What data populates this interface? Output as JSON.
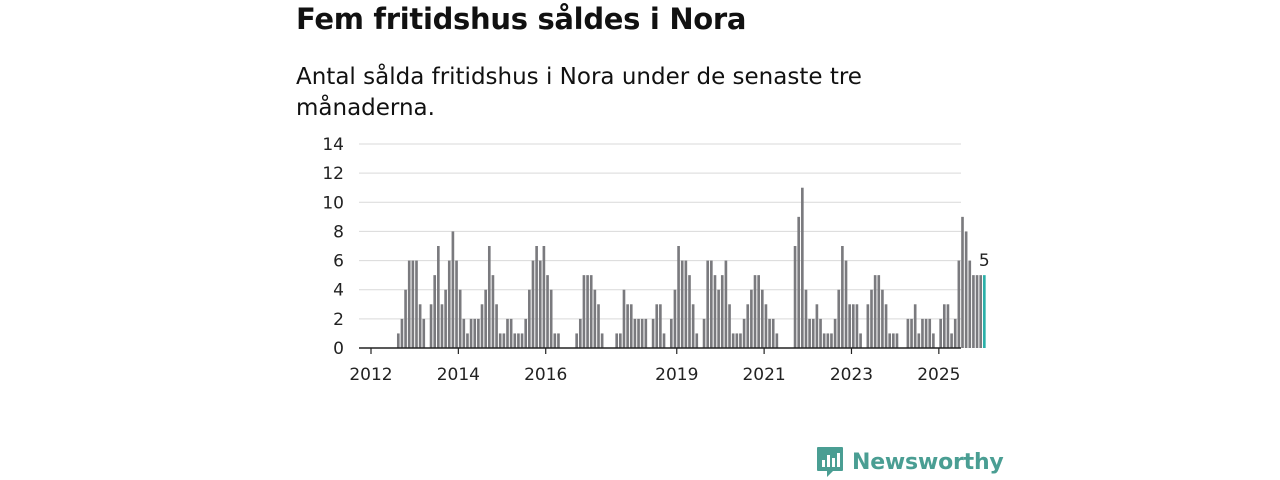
{
  "title": "Fem fritidshus såldes i Nora",
  "subtitle": "Antal sålda fritidshus i Nora under de senaste tre månaderna.",
  "brand": {
    "name": "Newsworthy",
    "color": "#4a9e93",
    "icon": "newsworthy-logo-icon"
  },
  "chart_data": {
    "type": "bar",
    "title": "Fem fritidshus såldes i Nora",
    "subtitle": "Antal sålda fritidshus i Nora under de senaste tre månaderna.",
    "xlabel": "",
    "ylabel": "",
    "ylim": [
      0,
      14
    ],
    "yticks": [
      "0",
      "2",
      "4",
      "6",
      "8",
      "10",
      "12",
      "14"
    ],
    "xticks": [
      "2012",
      "2014",
      "2016",
      "2019",
      "2021",
      "2023",
      "2025"
    ],
    "grid": true,
    "bar_color": "#7a7a7e",
    "highlight_color": "#2ab0a8",
    "highlight_label": "5",
    "start": "2011-10",
    "values": [
      null,
      null,
      null,
      null,
      null,
      null,
      null,
      null,
      null,
      null,
      1,
      2,
      4,
      6,
      6,
      6,
      3,
      2,
      null,
      3,
      5,
      7,
      3,
      4,
      6,
      8,
      6,
      4,
      2,
      1,
      2,
      2,
      2,
      3,
      4,
      7,
      5,
      3,
      1,
      1,
      2,
      2,
      1,
      1,
      1,
      2,
      4,
      6,
      7,
      6,
      7,
      5,
      4,
      1,
      1,
      null,
      null,
      null,
      null,
      1,
      2,
      5,
      5,
      5,
      4,
      3,
      1,
      null,
      null,
      null,
      1,
      1,
      4,
      3,
      3,
      2,
      2,
      2,
      2,
      null,
      2,
      3,
      3,
      1,
      null,
      2,
      4,
      7,
      6,
      6,
      5,
      3,
      1,
      null,
      2,
      6,
      6,
      5,
      4,
      5,
      6,
      3,
      1,
      1,
      1,
      2,
      3,
      4,
      5,
      5,
      4,
      3,
      2,
      2,
      1,
      null,
      null,
      null,
      null,
      7,
      9,
      11,
      4,
      2,
      2,
      3,
      2,
      1,
      1,
      1,
      2,
      4,
      7,
      6,
      3,
      3,
      3,
      1,
      null,
      3,
      4,
      5,
      5,
      4,
      3,
      1,
      1,
      1,
      null,
      null,
      2,
      2,
      3,
      1,
      2,
      2,
      2,
      1,
      null,
      2,
      3,
      3,
      1,
      2,
      6,
      9,
      8,
      6,
      5,
      5,
      5,
      5
    ]
  }
}
